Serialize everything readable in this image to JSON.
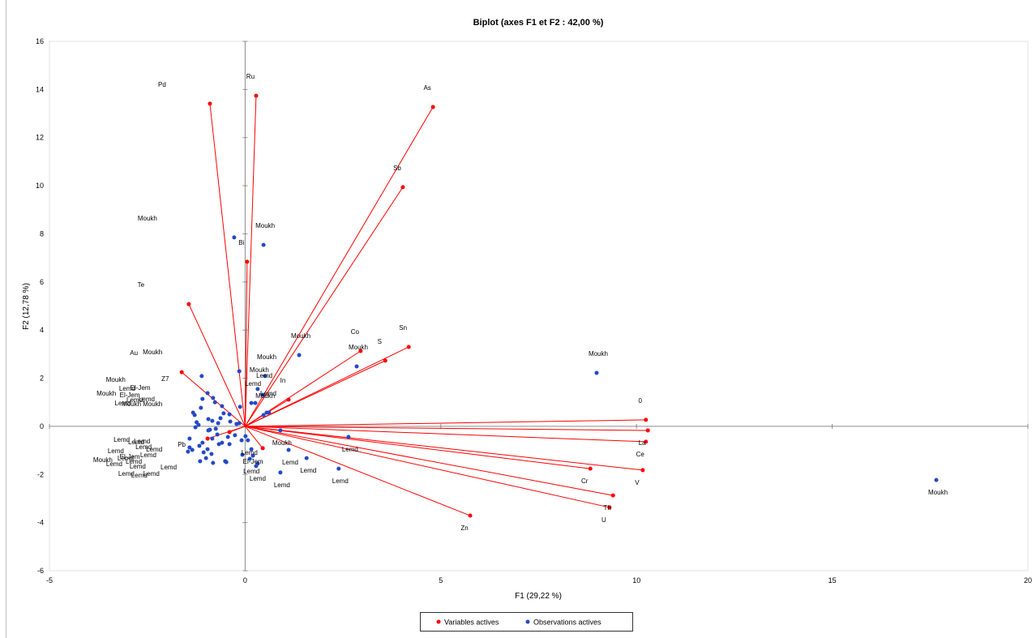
{
  "chart_data": {
    "type": "scatter",
    "title": "Biplot (axes F1 et F2 : 42,00 %)",
    "xlabel": "F1 (29,22 %)",
    "ylabel": "F2 (12,78 %)",
    "xlim": [
      -5,
      20
    ],
    "ylim": [
      -6,
      16
    ],
    "xticks": [
      -5,
      0,
      5,
      10,
      15,
      20
    ],
    "yticks": [
      -6,
      -4,
      -2,
      0,
      2,
      4,
      6,
      8,
      10,
      12,
      14,
      16
    ],
    "grid": false,
    "legend": {
      "position": "bottom"
    },
    "series": [
      {
        "name": "Variables actives",
        "color": "#ff0000",
        "vectors_from_origin": true,
        "points": [
          {
            "label": "Pd",
            "x": -0.9,
            "y": 13.41
          },
          {
            "label": "Ru",
            "x": 0.28,
            "y": 13.74
          },
          {
            "label": "As",
            "x": 4.8,
            "y": 13.27
          },
          {
            "label": "Sb",
            "x": 4.03,
            "y": 9.94
          },
          {
            "label": "Bi",
            "x": 0.05,
            "y": 6.84
          },
          {
            "label": "Te",
            "x": -1.44,
            "y": 5.08
          },
          {
            "label": "Co",
            "x": 2.95,
            "y": 3.13
          },
          {
            "label": "S",
            "x": 3.58,
            "y": 2.73
          },
          {
            "label": "Sn",
            "x": 4.18,
            "y": 3.3
          },
          {
            "label": "Au",
            "x": -1.62,
            "y": 2.25
          },
          {
            "label": "In",
            "x": 1.11,
            "y": 1.11
          },
          {
            "label": "0",
            "x": 10.24,
            "y": 0.27
          },
          {
            "label": "La",
            "x": 10.29,
            "y": -0.17
          },
          {
            "label": "Ce",
            "x": 10.24,
            "y": -0.64
          },
          {
            "label": "V",
            "x": 10.16,
            "y": -1.82
          },
          {
            "label": "Cr",
            "x": 8.82,
            "y": -1.76
          },
          {
            "label": "Th",
            "x": 9.4,
            "y": -2.87
          },
          {
            "label": "U",
            "x": 9.31,
            "y": -3.37
          },
          {
            "label": "Zn",
            "x": 5.75,
            "y": -3.71
          },
          {
            "label": "Pb",
            "x": -0.4,
            "y": -0.24
          },
          {
            "x": 0.45,
            "y": -0.91
          },
          {
            "x": -0.96,
            "y": -0.51
          }
        ]
      },
      {
        "name": "Observations actives",
        "color": "#2448c8",
        "points": [
          {
            "label": "Moukh",
            "x": -0.28,
            "y": 7.85
          },
          {
            "label": "Moukh",
            "x": 0.47,
            "y": 7.54
          },
          {
            "label": "Moukh",
            "x": 1.38,
            "y": 2.96
          },
          {
            "label": "Moukh",
            "x": 2.85,
            "y": 2.49
          },
          {
            "label": "Moukh",
            "x": 8.98,
            "y": 2.22
          },
          {
            "label": "Moukh",
            "x": 17.66,
            "y": -2.23
          },
          {
            "label": "Moukh",
            "x": -0.15,
            "y": 2.29
          },
          {
            "label": "Z7",
            "x": -0.82,
            "y": 1.18
          },
          {
            "label": "Moukh",
            "x": -1.09,
            "y": 1.14
          },
          {
            "label": "Moukh",
            "x": -1.33,
            "y": 0.57
          },
          {
            "label": "Lemd",
            "x": -1.13,
            "y": 0.77
          },
          {
            "label": "El-Jem",
            "x": -0.13,
            "y": 0.81
          },
          {
            "label": "Lemd",
            "x": -0.94,
            "y": 0.3
          },
          {
            "label": "Lemd",
            "x": -0.63,
            "y": 0.34
          },
          {
            "label": "El-Jem",
            "x": -0.4,
            "y": 0.5
          },
          {
            "label": "Moukh",
            "x": -0.69,
            "y": 0.13
          },
          {
            "label": "Moukh",
            "x": -0.15,
            "y": 0.13
          },
          {
            "label": "Lemd",
            "x": -1.24,
            "y": 0.17
          },
          {
            "label": "Lemd",
            "x": -1.27,
            "y": -0.04
          },
          {
            "label": "Lemd",
            "x": -0.9,
            "y": -0.14
          },
          {
            "label": "Lemd",
            "x": -0.75,
            "y": -0.1
          },
          {
            "label": "Lemd",
            "x": -0.71,
            "y": -0.34
          },
          {
            "label": "Lemd",
            "x": -1.42,
            "y": -0.51
          },
          {
            "label": "Lemd",
            "x": -0.44,
            "y": -0.44
          },
          {
            "label": "Lemd",
            "x": -0.59,
            "y": -0.68
          },
          {
            "label": "Moukh",
            "x": -1.42,
            "y": -0.88
          },
          {
            "label": "Lemd",
            "x": -1.17,
            "y": -0.81
          },
          {
            "label": "Lemd",
            "x": -0.96,
            "y": -0.95
          },
          {
            "label": "Lemd",
            "x": -0.86,
            "y": -1.15
          },
          {
            "label": "Lemd",
            "x": -1.46,
            "y": -1.05
          },
          {
            "label": "Lemd",
            "x": -0.07,
            "y": -1.18
          },
          {
            "label": "Lemd",
            "x": -1.15,
            "y": -1.45
          },
          {
            "label": "Lemd",
            "x": -0.82,
            "y": -1.52
          },
          {
            "label": "Lemd",
            "x": -0.51,
            "y": -1.45
          },
          {
            "label": "El-Jem",
            "x": -0.4,
            "y": -0.74
          },
          {
            "label": "Moukh",
            "x": 0.51,
            "y": 2.09
          },
          {
            "label": "Moukh",
            "x": 0.32,
            "y": 1.55
          },
          {
            "label": "Lemd",
            "x": 0.45,
            "y": 1.31
          },
          {
            "label": "Lemd",
            "x": 0.16,
            "y": 0.97
          },
          {
            "label": "Lemd",
            "x": 0.55,
            "y": 0.57
          },
          {
            "label": "Moukh",
            "x": 0.47,
            "y": 0.47
          },
          {
            "label": "Moukh",
            "x": 0.9,
            "y": -0.17
          },
          {
            "label": "Lemd",
            "x": 2.64,
            "y": -0.44
          },
          {
            "label": "Lemd",
            "x": 2.39,
            "y": -1.76
          },
          {
            "label": "Lemd",
            "x": 1.57,
            "y": -1.32
          },
          {
            "label": "Lemd",
            "x": 1.11,
            "y": -0.98
          },
          {
            "label": "Lemd",
            "x": 0.9,
            "y": -1.92
          },
          {
            "label": "Lemd",
            "x": 0.28,
            "y": -1.65
          },
          {
            "label": "Lemd",
            "x": 0.12,
            "y": -1.35
          },
          {
            "label": "El-Jem",
            "x": 0.16,
            "y": -0.95
          },
          {
            "label": "Lemd",
            "x": 0.07,
            "y": -0.58
          },
          {
            "x": -1.11,
            "y": 2.09
          },
          {
            "x": -0.96,
            "y": 1.38
          },
          {
            "x": -0.59,
            "y": 0.84
          },
          {
            "x": -0.84,
            "y": 0.23
          },
          {
            "x": -0.38,
            "y": 0.2
          },
          {
            "x": -0.22,
            "y": 0.1
          },
          {
            "x": -0.94,
            "y": -0.17
          },
          {
            "x": -0.67,
            "y": -0.74
          },
          {
            "x": -1.35,
            "y": -0.98
          },
          {
            "x": -1.06,
            "y": -1.08
          },
          {
            "x": -1.0,
            "y": -1.32
          },
          {
            "x": -0.48,
            "y": -1.49
          },
          {
            "x": -1.09,
            "y": -0.68
          },
          {
            "x": -0.09,
            "y": -0.58
          },
          {
            "x": 0.01,
            "y": -0.41
          },
          {
            "x": 0.2,
            "y": -1.22
          },
          {
            "x": 0.32,
            "y": -1.55
          },
          {
            "x": 0.61,
            "y": 0.57
          },
          {
            "x": 0.26,
            "y": 0.97
          },
          {
            "x": -1.19,
            "y": 0.06
          },
          {
            "x": -0.77,
            "y": 1.0
          },
          {
            "x": -0.55,
            "y": 0.54
          },
          {
            "x": -1.29,
            "y": 0.47
          },
          {
            "x": -0.84,
            "y": -0.51
          },
          {
            "x": -0.26,
            "y": -0.37
          }
        ]
      }
    ]
  }
}
